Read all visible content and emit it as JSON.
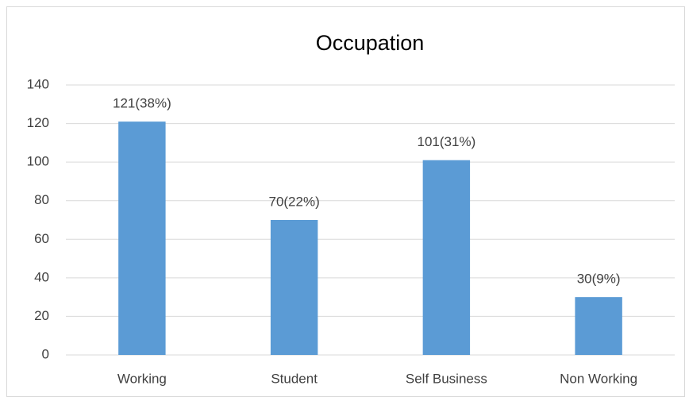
{
  "chart_data": {
    "type": "bar",
    "title": "Occupation",
    "categories": [
      "Working",
      "Student",
      "Self Business",
      "Non Working"
    ],
    "values": [
      121,
      70,
      101,
      30
    ],
    "value_labels": [
      "121(38%)",
      "70(22%)",
      "101(31%)",
      "30(9%)"
    ],
    "color": "#5b9bd5",
    "ylim": [
      0,
      140
    ],
    "yticks": [
      0,
      20,
      40,
      60,
      80,
      100,
      120,
      140
    ],
    "grid": true
  }
}
